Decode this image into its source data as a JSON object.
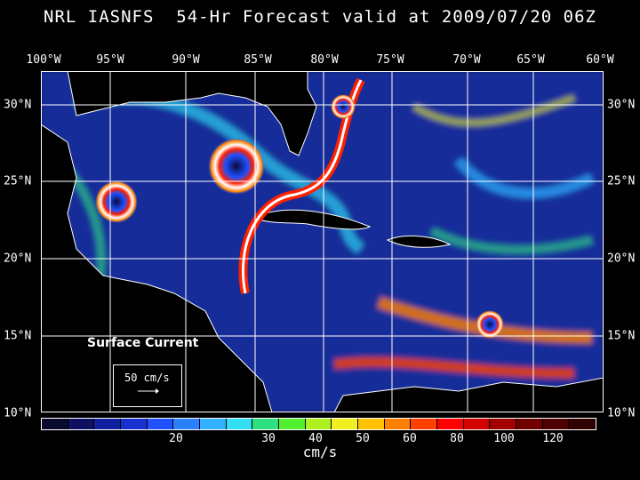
{
  "title": "NRL IASNFS  54-Hr Forecast valid at 2009/07/20 06Z",
  "lon_labels": [
    "100°W",
    "95°W",
    "90°W",
    "85°W",
    "80°W",
    "75°W",
    "70°W",
    "65°W",
    "60°W"
  ],
  "lat_labels": [
    "30°N",
    "25°N",
    "20°N",
    "15°N",
    "10°N"
  ],
  "legend_label": "Surface Current",
  "reference_vector": "50 cm/s",
  "colorbar": {
    "labels": [
      "20",
      "30",
      "40",
      "50",
      "60",
      "80",
      "100",
      "120"
    ],
    "units": "cm/s",
    "colors": [
      "#0a0a30",
      "#101060",
      "#1020a0",
      "#1830d0",
      "#2050ff",
      "#2a80ff",
      "#30b0ff",
      "#30e0f0",
      "#30e080",
      "#50f030",
      "#b0f020",
      "#f0f020",
      "#ffc000",
      "#ff8000",
      "#ff4000",
      "#ff0000",
      "#d00000",
      "#a00000",
      "#700000",
      "#500000",
      "#300000"
    ]
  }
}
